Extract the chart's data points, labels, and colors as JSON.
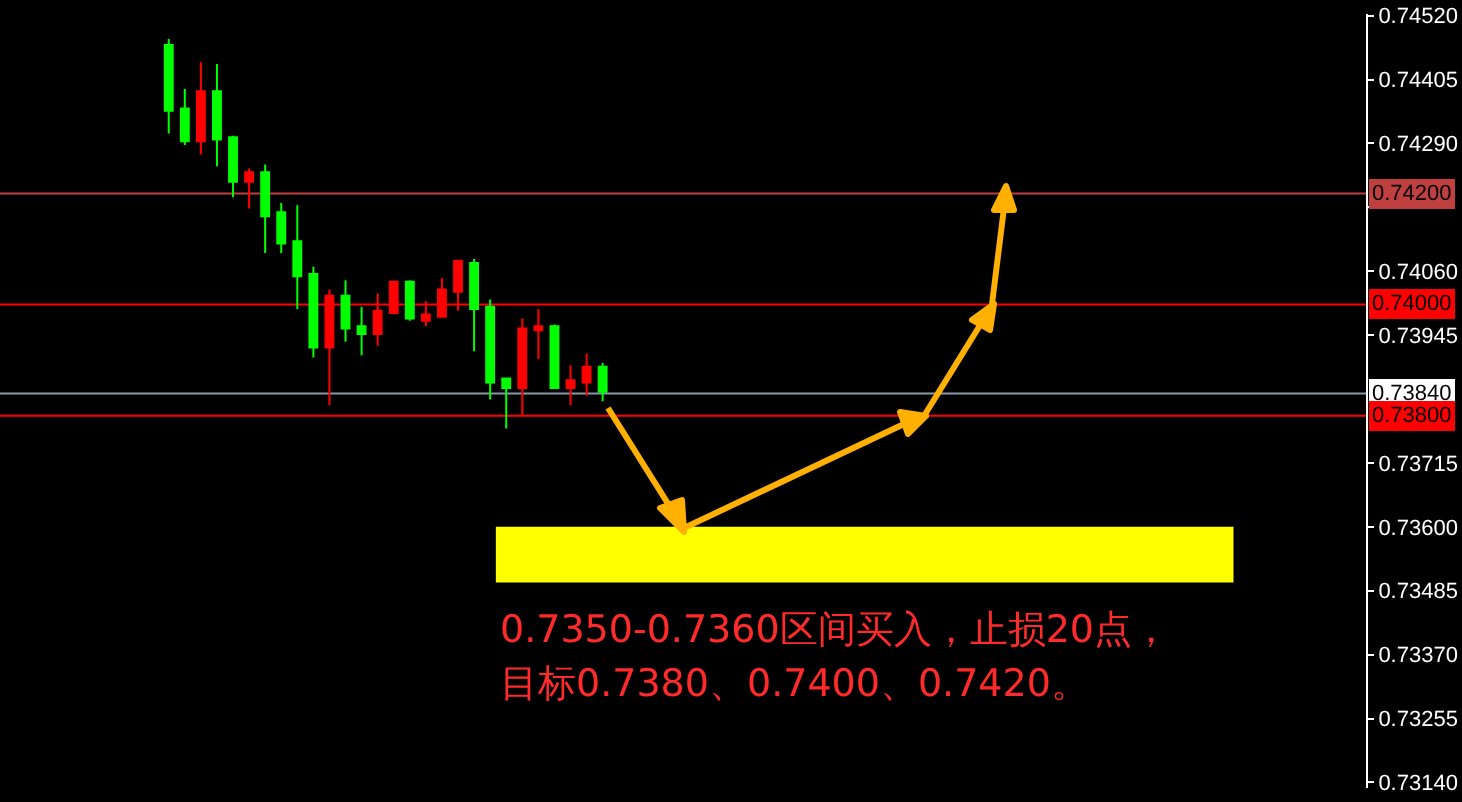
{
  "chart_data": {
    "type": "candlestick",
    "categories": [
      null,
      null,
      null,
      null,
      null,
      null,
      null,
      null,
      null,
      null,
      null,
      null,
      null,
      null,
      null,
      null,
      null,
      null,
      null,
      null,
      null,
      null,
      null,
      null,
      null,
      null,
      null,
      null,
      null,
      null,
      null,
      null,
      null,
      null,
      null,
      null,
      null,
      null,
      null,
      null,
      null,
      null,
      null,
      null,
      null,
      null,
      null,
      null,
      null,
      null,
      null,
      null,
      null,
      null,
      null,
      null,
      null,
      null,
      null,
      null,
      null,
      null,
      null,
      null,
      null,
      null,
      null,
      null,
      null,
      null,
      null,
      null,
      null,
      null,
      null,
      null,
      null,
      null,
      null,
      null,
      null,
      null,
      null,
      null,
      null
    ],
    "ohlc": [
      null,
      null,
      null,
      null,
      null,
      null,
      null,
      null,
      null,
      null,
      [
        0.74467,
        0.74478,
        0.74308,
        0.74349
      ],
      [
        0.74353,
        0.74388,
        0.74287,
        0.74294
      ],
      [
        0.74294,
        0.74436,
        0.7427,
        0.74384
      ],
      [
        0.74384,
        0.74433,
        0.74249,
        0.74297
      ],
      [
        0.74301,
        0.74304,
        0.74193,
        0.74221
      ],
      [
        0.74221,
        0.74245,
        0.74173,
        0.74238
      ],
      [
        0.74238,
        0.74252,
        0.74093,
        0.74159
      ],
      [
        0.74166,
        0.74183,
        0.74093,
        0.7411
      ],
      [
        0.74114,
        0.74179,
        0.73992,
        0.74051
      ],
      [
        0.74055,
        0.74068,
        0.73905,
        0.73923
      ],
      [
        0.73923,
        0.74027,
        0.73819,
        0.74016
      ],
      [
        0.74016,
        0.74044,
        0.73933,
        0.73957
      ],
      [
        0.73961,
        0.73996,
        0.73909,
        0.73947
      ],
      [
        0.73947,
        0.7402,
        0.73926,
        0.73989
      ],
      [
        0.73985,
        0.74041,
        0.73982,
        0.74041
      ],
      [
        0.74041,
        0.74044,
        0.73971,
        0.73975
      ],
      [
        0.73971,
        0.74006,
        0.73961,
        0.73982
      ],
      [
        0.73978,
        0.74048,
        0.73978,
        0.74027
      ],
      [
        0.74023,
        0.74079,
        0.73989,
        0.74079
      ],
      [
        0.74075,
        0.74082,
        0.73916,
        0.73992
      ],
      [
        0.73996,
        0.74009,
        0.73829,
        0.7386
      ],
      [
        0.73867,
        0.73867,
        0.73777,
        0.7385
      ],
      [
        0.7385,
        0.73975,
        0.73798,
        0.73957
      ],
      [
        0.73954,
        0.73992,
        0.73902,
        0.73961
      ],
      [
        0.73961,
        0.73964,
        0.7385,
        0.7385
      ],
      [
        0.7385,
        0.73891,
        0.73819,
        0.73864
      ],
      [
        0.7386,
        0.73912,
        0.73836,
        0.73888
      ],
      [
        0.73888,
        0.73895,
        0.73826,
        0.73843
      ],
      null,
      null,
      null,
      null,
      null,
      null,
      null,
      null,
      null,
      null,
      null,
      null,
      null,
      null,
      null,
      null,
      null,
      null,
      null,
      null,
      null,
      null,
      null,
      null,
      null,
      null,
      null,
      null,
      null,
      null,
      null,
      null,
      null,
      null,
      null,
      null,
      null,
      null,
      null,
      null,
      null,
      null,
      null,
      null,
      null,
      null,
      null
    ],
    "colors": [
      null,
      null,
      null,
      null,
      null,
      null,
      null,
      null,
      null,
      null,
      "#00ff00",
      "#00ff00",
      "#ff0000",
      "#00ff00",
      "#00ff00",
      "#ff0000",
      "#00ff00",
      "#00ff00",
      "#00ff00",
      "#00ff00",
      "#ff0000",
      "#00ff00",
      "#00ff00",
      "#ff0000",
      "#ff0000",
      "#00ff00",
      "#ff0000",
      "#ff0000",
      "#ff0000",
      "#00ff00",
      "#00ff00",
      "#00ff00",
      "#ff0000",
      "#ff0000",
      "#00ff00",
      "#ff0000",
      "#ff0000",
      "#00ff00",
      null,
      null,
      null,
      null,
      null,
      null,
      null,
      null,
      null,
      null,
      null,
      null,
      null,
      null,
      null,
      null,
      null,
      null,
      null,
      null,
      null,
      null,
      null,
      null,
      null,
      null,
      null,
      null,
      null,
      null,
      null,
      null,
      null,
      null,
      null,
      null,
      null,
      null,
      null,
      null,
      null,
      null,
      null,
      null,
      null,
      null,
      null
    ],
    "ylim": [
      0.7313,
      0.74523
    ],
    "yticks": [
      {
        "value": 0.7452,
        "label": "0.74520"
      },
      0.74405,
      {
        "value": 0.7429,
        "label": "0.74290"
      },
      {
        "value": 0.74175,
        "label": null
      },
      {
        "value": 0.7406,
        "label": "0.74060"
      },
      0.73945,
      0.73715,
      {
        "value": 0.736,
        "label": "0.73600"
      },
      0.73485,
      {
        "value": 0.7337,
        "label": "0.73370"
      },
      0.73255,
      {
        "value": 0.7314,
        "label": "0.73140"
      }
    ],
    "tick_labels": "y",
    "ref_lines": [
      {
        "axis": "y",
        "value": 0.742,
        "label": "0.74200",
        "color": "#c04040"
      },
      {
        "axis": "y",
        "value": 0.74,
        "label": "0.74000",
        "color": "#ff0000"
      },
      {
        "axis": "y",
        "value": 0.7384,
        "label": "0.73840",
        "color": "#8899aa"
      },
      {
        "axis": "y",
        "value": 0.738,
        "label": "0.73800",
        "color": "#ff0000"
      }
    ],
    "bands": [
      {
        "axis": "y",
        "from": 0.735,
        "to": 0.736,
        "color": "#ffff00"
      }
    ],
    "annotations": [
      "0.7350-0.7360区间买入，止损20点，",
      "目标0.7380、0.7400、0.7420。"
    ]
  }
}
